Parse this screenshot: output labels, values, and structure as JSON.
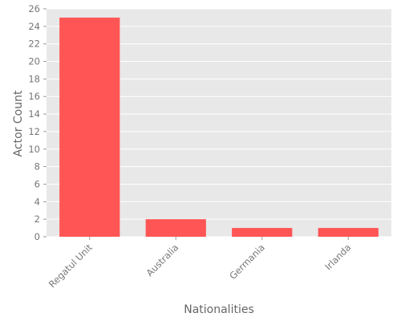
{
  "chart_data": {
    "type": "bar",
    "title": "",
    "xlabel": "Nationalities",
    "ylabel": "Actor Count",
    "categories": [
      "Regatul Unit",
      "Australia",
      "Germania",
      "Irlanda"
    ],
    "values": [
      25,
      2,
      1,
      1
    ],
    "ylim": [
      0,
      26
    ],
    "yticks": [
      0,
      2,
      4,
      6,
      8,
      10,
      12,
      14,
      16,
      18,
      20,
      22,
      24,
      26
    ],
    "grid": true,
    "bar_color": "#ff5555",
    "background_color": "#e8e8e8",
    "grid_color": "#ffffff"
  }
}
